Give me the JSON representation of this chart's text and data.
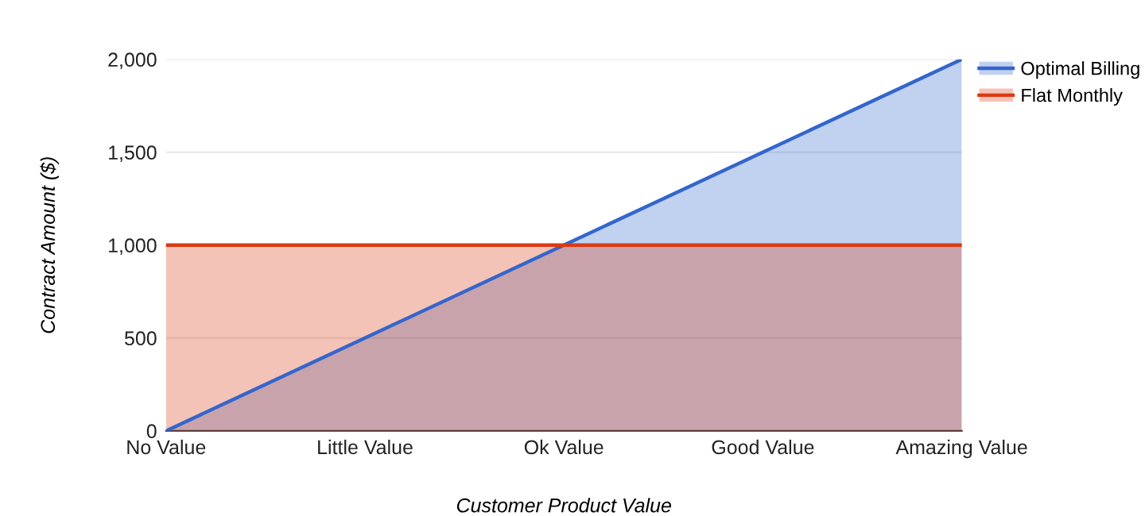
{
  "chart_data": {
    "type": "area",
    "xlabel": "Customer Product Value",
    "ylabel": "Contract Amount ($)",
    "categories": [
      "No Value",
      "Little Value",
      "Ok Value",
      "Good Value",
      "Amazing Value"
    ],
    "series": [
      {
        "name": "Optimal Billing",
        "color": "#3366cc",
        "values": [
          0,
          500,
          1000,
          1500,
          2000
        ]
      },
      {
        "name": "Flat Monthly",
        "color": "#dc3912",
        "values": [
          1000,
          1000,
          1000,
          1000,
          1000
        ]
      }
    ],
    "ylim": [
      0,
      2000
    ],
    "yticks": [
      {
        "value": 0,
        "label": "0"
      },
      {
        "value": 500,
        "label": "500"
      },
      {
        "value": 1000,
        "label": "1,000"
      },
      {
        "value": 1500,
        "label": "1,500"
      },
      {
        "value": 2000,
        "label": "2,000"
      }
    ],
    "grid": "y",
    "legend": "right"
  }
}
